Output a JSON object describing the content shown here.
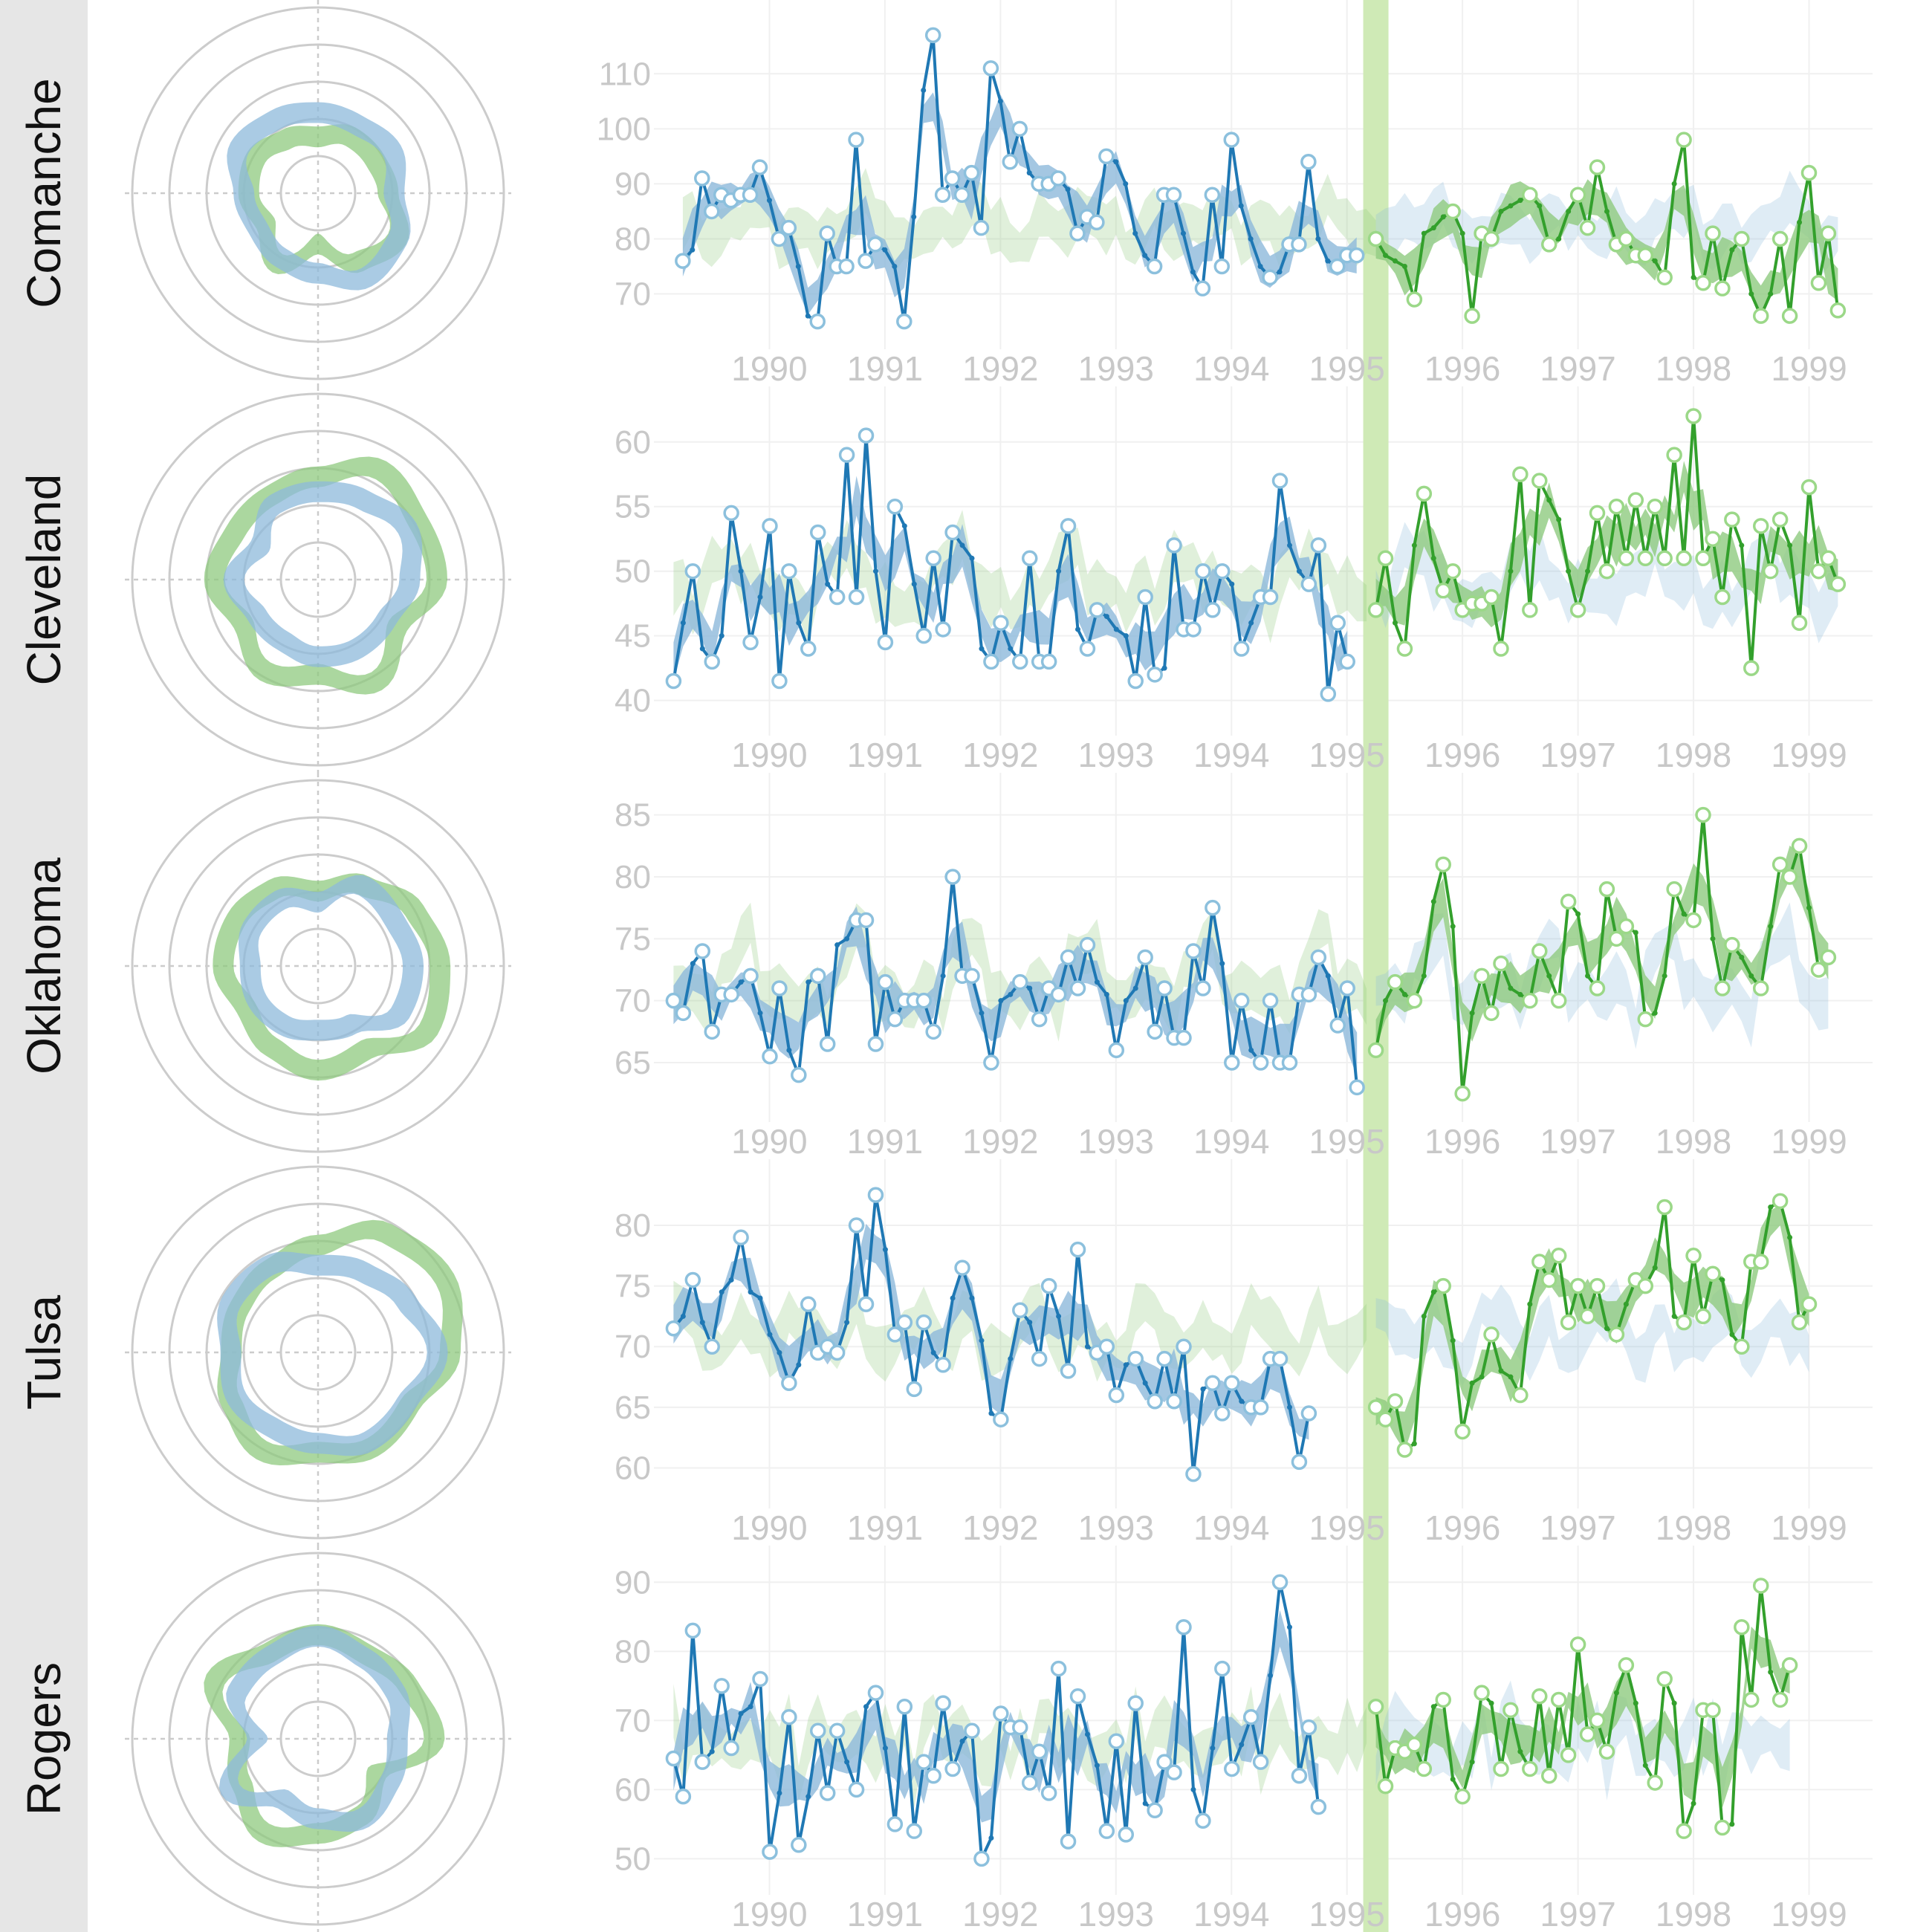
{
  "colors": {
    "observed_line": "#1f78b4",
    "observed_band": "#8db9db",
    "forecast_line": "#33a02c",
    "forecast_band": "#8fca7f",
    "highlight": "#cfeab6",
    "grid": "#cccccc",
    "tick_text": "#c8c8c8",
    "strip": "#e6e6e6"
  },
  "x_labels": [
    "1990",
    "1991",
    "1992",
    "1993",
    "1994",
    "1995",
    "1996",
    "1997",
    "1998",
    "1999"
  ],
  "chart_data": [
    {
      "type": "line",
      "panel": "Comanche",
      "yticks": [
        70,
        80,
        90,
        100,
        110
      ],
      "ylim": [
        64,
        118
      ],
      "start_year": 1989.75,
      "split_year": 1995.75,
      "values": [
        76,
        78,
        91,
        85,
        88,
        87,
        88,
        88,
        93,
        87,
        80,
        82,
        75,
        66,
        65,
        81,
        75,
        75,
        98,
        76,
        79,
        78,
        75,
        65,
        84,
        107,
        117,
        88,
        91,
        88,
        92,
        82,
        111,
        105,
        94,
        100,
        92,
        90,
        90,
        91,
        89,
        81,
        84,
        83,
        95,
        94,
        90,
        81,
        77,
        75,
        88,
        88,
        81,
        74,
        71,
        88,
        75,
        98,
        86,
        80,
        75,
        73,
        74,
        79,
        79,
        94,
        80,
        76,
        75,
        77,
        77
      ],
      "forecast": [
        80,
        77,
        76,
        75,
        69,
        81,
        82,
        84,
        85,
        81,
        66,
        81,
        80,
        85,
        86,
        87,
        88,
        86,
        79,
        80,
        85,
        88,
        82,
        93,
        85,
        79,
        80,
        77,
        77,
        76,
        73,
        90,
        98,
        73,
        72,
        81,
        71,
        78,
        80,
        70,
        66,
        70,
        80,
        66,
        83,
        92,
        72,
        81,
        67
      ]
    },
    {
      "type": "line",
      "panel": "Cleveland",
      "yticks": [
        40,
        45,
        50,
        55,
        60
      ],
      "ylim": [
        39,
        62
      ],
      "start_year": 1989.67,
      "split_year": 1995.75,
      "values": [
        41.5,
        46,
        50,
        44,
        43,
        45,
        54.5,
        50,
        44.5,
        48,
        53.5,
        41.5,
        50,
        46,
        44,
        53,
        49,
        48,
        59,
        48,
        60.5,
        50,
        44.5,
        55,
        53.5,
        49,
        45,
        51,
        45.5,
        53,
        52,
        51,
        44,
        43,
        46,
        44,
        43,
        51,
        43,
        43,
        50,
        53.5,
        45.5,
        44,
        47,
        46.5,
        45.5,
        45,
        41.5,
        48,
        42,
        42.5,
        52,
        45.5,
        45.5,
        50,
        47,
        50,
        49,
        44,
        46,
        48,
        48,
        57,
        52,
        50,
        49,
        52,
        40.5,
        46,
        43
      ],
      "forecast": [
        47,
        51,
        46,
        44,
        52,
        56,
        51,
        48.5,
        50,
        47,
        47.5,
        47.5,
        48,
        44,
        50,
        57.5,
        47,
        57,
        55.5,
        54,
        50,
        47,
        50,
        54.5,
        50,
        55,
        51,
        55.5,
        51,
        55,
        51,
        59,
        51,
        62,
        51,
        52.5,
        48,
        54,
        52,
        42.5,
        53.5,
        50,
        54,
        52,
        46,
        56.5,
        50,
        51,
        49
      ]
    },
    {
      "type": "line",
      "panel": "Oklahoma",
      "yticks": [
        65,
        70,
        75,
        80,
        85
      ],
      "ylim": [
        62,
        86
      ],
      "start_year": 1989.67,
      "split_year": 1995.75,
      "values": [
        70,
        69,
        73,
        74,
        67.5,
        70.5,
        70.5,
        71.5,
        72,
        69,
        65.5,
        71,
        66,
        64,
        71.5,
        72,
        66.5,
        74.5,
        75,
        76.5,
        76.5,
        66.5,
        71.5,
        68.5,
        70,
        70,
        70,
        67.5,
        72,
        80,
        72,
        72,
        69,
        65,
        70,
        70.5,
        71.5,
        71,
        68.5,
        71,
        70.5,
        73.5,
        71,
        74.5,
        71.5,
        70.5,
        66,
        70,
        71,
        73.5,
        67.5,
        71,
        67,
        67,
        74,
        71,
        77.5,
        73,
        65,
        70,
        66,
        65,
        70,
        65,
        65,
        70.5,
        70.5,
        73.5,
        72,
        68,
        71,
        63
      ],
      "forecast": [
        66,
        70,
        71.5,
        70.5,
        70,
        72,
        78,
        81,
        76,
        62.5,
        69,
        72,
        69,
        73,
        71,
        70.5,
        70,
        74,
        72,
        70,
        78,
        77,
        72,
        71,
        79,
        75,
        76,
        75.5,
        68.5,
        69,
        72,
        79,
        77,
        76.5,
        85,
        75,
        71,
        74.5,
        73.5,
        72,
        71,
        76,
        81,
        80,
        82.5,
        77.5,
        72.5,
        73.5
      ]
    },
    {
      "type": "line",
      "panel": "Tulsa",
      "yticks": [
        60,
        65,
        70,
        75,
        80
      ],
      "ylim": [
        58.5,
        83
      ],
      "start_year": 1989.67,
      "split_year": 1995.75,
      "values": [
        71.5,
        72.5,
        75.5,
        72,
        70,
        74.5,
        75.5,
        79,
        74.5,
        74,
        71,
        69.5,
        67,
        68.5,
        73.5,
        69.5,
        70,
        69.5,
        72,
        80,
        73.5,
        82.5,
        78,
        71,
        72,
        66.5,
        72,
        69.5,
        68.5,
        74,
        76.5,
        74,
        70.5,
        64.5,
        64,
        69,
        73,
        72,
        69,
        75,
        72.5,
        68,
        78,
        70,
        69.5,
        70,
        66,
        68.5,
        69,
        67,
        65.5,
        69,
        65.5,
        70,
        59.5,
        66.5,
        67,
        64.5,
        67,
        65.5,
        65,
        65,
        69,
        69,
        65,
        60.5,
        64.5
      ],
      "forecast": [
        65,
        64,
        65.5,
        61.5,
        62,
        72.5,
        74.5,
        75,
        70.5,
        63,
        67,
        67.5,
        71,
        68,
        67.5,
        66,
        73.5,
        77,
        75.5,
        77.5,
        72,
        75,
        72.5,
        75,
        71.5,
        71,
        73.5,
        75.5,
        75,
        76.5,
        81.5,
        72.5,
        72,
        77.5,
        72.5,
        76,
        75.5,
        71,
        70,
        77,
        77,
        81.5,
        82,
        79,
        72,
        73.5
      ]
    },
    {
      "type": "line",
      "panel": "Rogers",
      "yticks": [
        50,
        60,
        70,
        80,
        90
      ],
      "ylim": [
        48,
        91
      ],
      "start_year": 1989.67,
      "split_year": 1995.75,
      "values": [
        64.5,
        59,
        83,
        64,
        65.5,
        75,
        66,
        71,
        72,
        76,
        51,
        59.5,
        70.5,
        52,
        59,
        68.5,
        59.5,
        68.5,
        64,
        60,
        72,
        74,
        66,
        55,
        72,
        54,
        64,
        62,
        72.5,
        63,
        67,
        68.5,
        50,
        53,
        71,
        69,
        69,
        61,
        65.5,
        59.5,
        77.5,
        52.5,
        73.5,
        68,
        63.5,
        54,
        67,
        53.5,
        72.5,
        58,
        57,
        64,
        62.5,
        83.5,
        60,
        55.5,
        66,
        77.5,
        63,
        66.5,
        70.5,
        64,
        76.5,
        90,
        83.5,
        62,
        69,
        57.5
      ],
      "forecast": [
        72,
        60.5,
        66,
        65.5,
        66.5,
        63,
        72,
        73,
        61.5,
        59,
        64,
        74,
        72.5,
        63,
        71.5,
        65.5,
        63,
        73.5,
        62,
        73,
        65,
        81,
        68,
        70,
        65.5,
        74,
        78,
        72.5,
        63.5,
        61,
        76,
        72.5,
        54,
        58,
        71.5,
        71.5,
        54.5,
        55,
        83.5,
        73,
        89.5,
        77,
        73,
        78
      ]
    }
  ]
}
